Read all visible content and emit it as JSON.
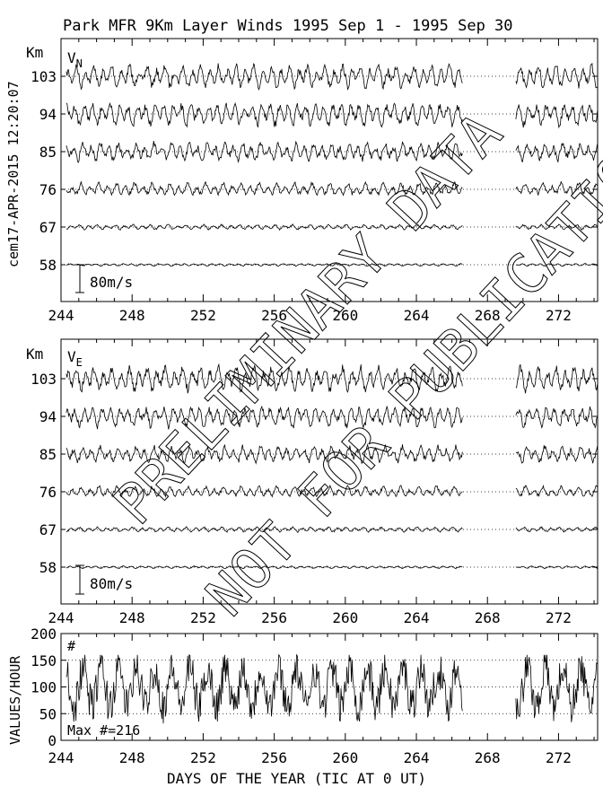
{
  "title": "Park MFR 9Km Layer Winds 1995 Sep  1 - 1995 Sep 30",
  "stamp": "cem17-APR-2015 12:20:07",
  "watermark": {
    "line1": "PRELIMINARY DATA",
    "line2": "NOT FOR PUBLICATION"
  },
  "chart_data": [
    {
      "type": "line",
      "component_label": "V",
      "component_sub": "N",
      "ylabel": "Km",
      "altitudes_km": [
        103,
        94,
        85,
        76,
        67,
        58
      ],
      "scale_label": "80m/s",
      "x_ticks": [
        244,
        248,
        252,
        256,
        260,
        264,
        268,
        272
      ],
      "xlim": [
        244,
        274.2
      ],
      "data_gap": [
        266.6,
        269.6
      ],
      "amplitude_ms": [
        55,
        55,
        45,
        30,
        12,
        6
      ],
      "grid": "dotted lines at each altitude"
    },
    {
      "type": "line",
      "component_label": "V",
      "component_sub": "E",
      "ylabel": "Km",
      "altitudes_km": [
        103,
        94,
        85,
        76,
        67,
        58
      ],
      "scale_label": "80m/s",
      "x_ticks": [
        244,
        248,
        252,
        256,
        260,
        264,
        268,
        272
      ],
      "xlim": [
        244,
        274.2
      ],
      "data_gap": [
        266.6,
        269.6
      ],
      "amplitude_ms": [
        60,
        50,
        40,
        25,
        12,
        6
      ],
      "grid": "dotted lines at each altitude"
    },
    {
      "type": "line",
      "ylabel": "VALUES/HOUR",
      "xlabel": "DAYS OF THE YEAR (TIC AT 0 UT)",
      "corner_label": "#",
      "max_label": "Max #=216",
      "y_ticks": [
        0,
        50,
        100,
        150,
        200
      ],
      "ylim": [
        0,
        200
      ],
      "x_ticks": [
        244,
        248,
        252,
        256,
        260,
        264,
        268,
        272
      ],
      "xlim": [
        244,
        274.2
      ],
      "data_gap": [
        266.6,
        269.6
      ],
      "typical_range": [
        50,
        150
      ]
    }
  ]
}
